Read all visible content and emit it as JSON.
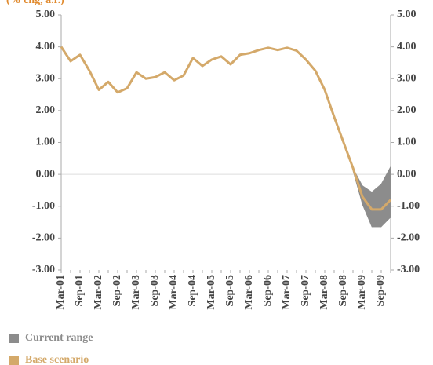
{
  "chart_data": {
    "type": "line",
    "subtitle": "(% chg, a.r.)",
    "categories": [
      "Mar-01",
      null,
      "Sep-01",
      null,
      "Mar-02",
      null,
      "Sep-02",
      null,
      "Mar-03",
      null,
      "Sep-03",
      null,
      "Mar-04",
      null,
      "Sep-04",
      null,
      "Mar-05",
      null,
      "Sep-05",
      null,
      "Mar-06",
      null,
      "Sep-06",
      null,
      "Mar-07",
      null,
      "Sep-07",
      null,
      "Mar-08",
      null,
      "Sep-08",
      null,
      "Mar-09",
      null,
      "Sep-09",
      null
    ],
    "series": [
      {
        "name": "Current range",
        "color": "#8c8c8c",
        "low": [
          null,
          null,
          null,
          null,
          null,
          null,
          null,
          null,
          null,
          null,
          null,
          null,
          null,
          null,
          null,
          null,
          null,
          null,
          null,
          null,
          null,
          null,
          null,
          null,
          null,
          null,
          null,
          null,
          null,
          null,
          null,
          0.1,
          -0.95,
          -1.65,
          -1.65,
          -1.35
        ],
        "high": [
          null,
          null,
          null,
          null,
          null,
          null,
          null,
          null,
          null,
          null,
          null,
          null,
          null,
          null,
          null,
          null,
          null,
          null,
          null,
          null,
          null,
          null,
          null,
          null,
          null,
          null,
          null,
          null,
          null,
          null,
          null,
          0.2,
          -0.35,
          -0.55,
          -0.3,
          0.25
        ]
      },
      {
        "name": "Base scenario",
        "color": "#d4a96a",
        "values": [
          4.0,
          3.55,
          3.75,
          3.25,
          2.65,
          2.9,
          2.57,
          2.7,
          3.2,
          3.0,
          3.05,
          3.2,
          2.95,
          3.1,
          3.65,
          3.4,
          3.6,
          3.7,
          3.45,
          3.75,
          3.8,
          3.9,
          3.97,
          3.9,
          3.97,
          3.88,
          3.6,
          3.25,
          2.65,
          1.8,
          1.0,
          0.2,
          -0.7,
          -1.1,
          -1.1,
          -0.8
        ]
      }
    ],
    "ylim": [
      -3,
      5
    ],
    "yticks": [
      {
        "value": 5,
        "label": "5.00"
      },
      {
        "value": 4,
        "label": "4.00"
      },
      {
        "value": 3,
        "label": "3.00"
      },
      {
        "value": 2,
        "label": "2.00"
      },
      {
        "value": 1,
        "label": "1.00"
      },
      {
        "value": 0,
        "label": "0.00"
      },
      {
        "value": -1,
        "label": "-1.00"
      },
      {
        "value": -2,
        "label": "-2.00"
      },
      {
        "value": -3,
        "label": "-3.00"
      }
    ],
    "subtitle_color": "#e08a2e"
  }
}
